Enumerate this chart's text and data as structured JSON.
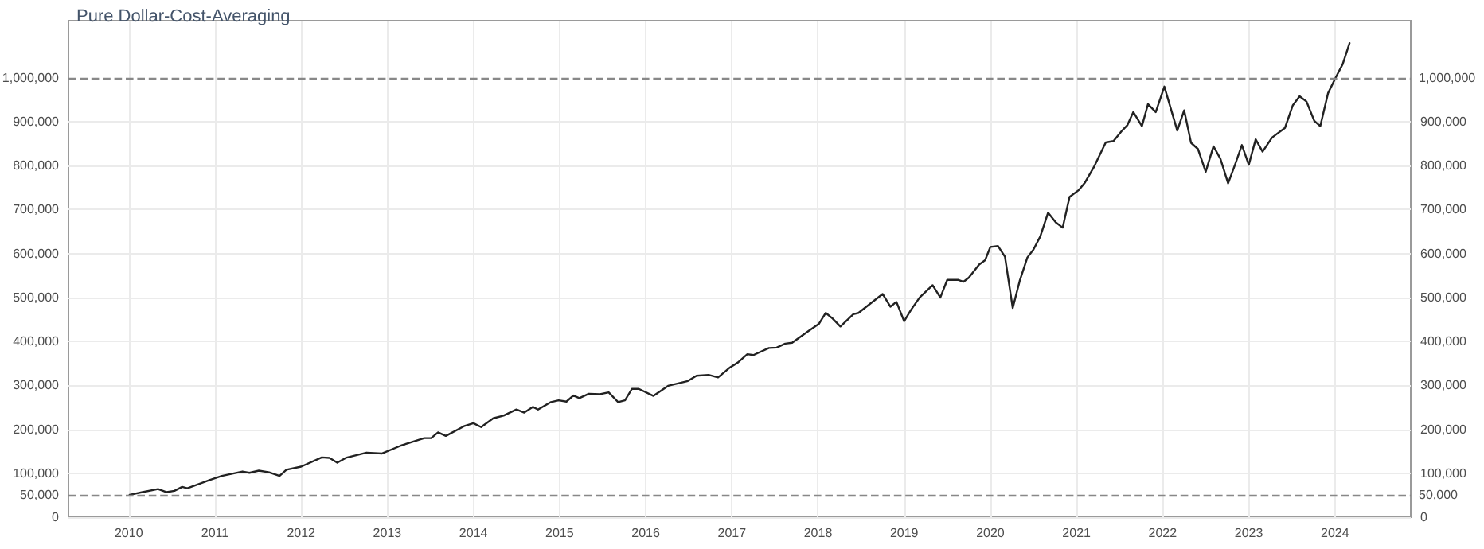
{
  "chart_data": {
    "type": "line",
    "title": "Pure Dollar-Cost-Averaging",
    "x": [
      2010.01,
      2010.16,
      2010.34,
      2010.44,
      2010.53,
      2010.62,
      2010.68,
      2010.93,
      2011.08,
      2011.32,
      2011.4,
      2011.51,
      2011.63,
      2011.75,
      2011.83,
      2012.0,
      2012.24,
      2012.33,
      2012.42,
      2012.52,
      2012.76,
      2012.94,
      2013.16,
      2013.43,
      2013.51,
      2013.59,
      2013.68,
      2013.89,
      2014.0,
      2014.09,
      2014.23,
      2014.35,
      2014.5,
      2014.59,
      2014.69,
      2014.75,
      2014.9,
      2014.99,
      2015.08,
      2015.16,
      2015.23,
      2015.34,
      2015.47,
      2015.57,
      2015.68,
      2015.76,
      2015.84,
      2015.92,
      2016.09,
      2016.26,
      2016.49,
      2016.59,
      2016.73,
      2016.84,
      2016.98,
      2017.07,
      2017.18,
      2017.25,
      2017.43,
      2017.52,
      2017.62,
      2017.7,
      2017.92,
      2018.01,
      2018.09,
      2018.17,
      2018.26,
      2018.41,
      2018.47,
      2018.62,
      2018.75,
      2018.84,
      2018.91,
      2019.0,
      2019.08,
      2019.18,
      2019.33,
      2019.42,
      2019.5,
      2019.63,
      2019.69,
      2019.75,
      2019.87,
      2019.94,
      2020.0,
      2020.09,
      2020.17,
      2020.26,
      2020.34,
      2020.43,
      2020.5,
      2020.58,
      2020.67,
      2020.76,
      2020.84,
      2020.92,
      2021.03,
      2021.1,
      2021.2,
      2021.34,
      2021.43,
      2021.53,
      2021.59,
      2021.66,
      2021.76,
      2021.83,
      2021.92,
      2022.02,
      2022.17,
      2022.25,
      2022.33,
      2022.41,
      2022.5,
      2022.59,
      2022.67,
      2022.76,
      2022.84,
      2022.92,
      2023.0,
      2023.08,
      2023.16,
      2023.27,
      2023.42,
      2023.51,
      2023.59,
      2023.67,
      2023.76,
      2023.83,
      2023.92,
      2024.01,
      2024.09,
      2024.17
    ],
    "series": [
      {
        "color": "#222222",
        "values": [
          51000,
          57000,
          64000,
          57000,
          60000,
          69000,
          66000,
          84000,
          94000,
          104000,
          101000,
          106000,
          102000,
          94000,
          108000,
          115000,
          136000,
          135000,
          124000,
          135000,
          147000,
          145000,
          163000,
          180000,
          180000,
          193000,
          185000,
          207000,
          214000,
          205000,
          225000,
          231000,
          245000,
          238000,
          251000,
          245000,
          262000,
          266000,
          263000,
          277000,
          271000,
          281000,
          280000,
          284000,
          262000,
          266000,
          292000,
          292000,
          276000,
          299000,
          310000,
          322000,
          324000,
          318000,
          341000,
          352000,
          371000,
          369000,
          385000,
          386000,
          395000,
          397000,
          428000,
          440000,
          465000,
          452000,
          434000,
          462000,
          465000,
          488000,
          508000,
          479000,
          490000,
          446000,
          472000,
          500000,
          528000,
          500000,
          540000,
          540000,
          536000,
          545000,
          575000,
          585000,
          615000,
          617000,
          593000,
          476000,
          537000,
          591000,
          609000,
          639000,
          693000,
          671000,
          659000,
          729000,
          745000,
          762000,
          796000,
          853000,
          856000,
          880000,
          892000,
          922000,
          890000,
          940000,
          922000,
          980000,
          880000,
          926000,
          852000,
          838000,
          786000,
          844000,
          816000,
          760000,
          802000,
          847000,
          802000,
          860000,
          832000,
          864000,
          886000,
          937000,
          958000,
          946000,
          902000,
          890000,
          965000,
          1001000,
          1031000,
          1079000
        ]
      }
    ],
    "xlim": [
      2009.3,
      2024.88
    ],
    "xticks": [
      2010,
      2011,
      2012,
      2013,
      2014,
      2015,
      2016,
      2017,
      2018,
      2019,
      2020,
      2021,
      2022,
      2023,
      2024
    ],
    "ylim": [
      0,
      1130000
    ],
    "yticks": [
      0,
      {
        "value": 100000,
        "label": "100,000"
      },
      {
        "value": 200000,
        "label": "200,000"
      },
      {
        "value": 300000,
        "label": "300,000"
      },
      {
        "value": 400000,
        "label": "400,000"
      },
      {
        "value": 500000,
        "label": "500,000"
      },
      {
        "value": 600000,
        "label": "600,000"
      },
      {
        "value": 700000,
        "label": "700,000"
      },
      {
        "value": 800000,
        "label": "800,000"
      },
      {
        "value": 900000,
        "label": "900,000"
      }
    ],
    "y2lim": [
      0,
      1130000
    ],
    "y2ticks": [
      0,
      {
        "value": 100000,
        "label": "100,000"
      },
      {
        "value": 200000,
        "label": "200,000"
      },
      {
        "value": 300000,
        "label": "300,000"
      },
      {
        "value": 400000,
        "label": "400,000"
      },
      {
        "value": 500000,
        "label": "500,000"
      },
      {
        "value": 600000,
        "label": "600,000"
      },
      {
        "value": 700000,
        "label": "700,000"
      },
      {
        "value": 800000,
        "label": "800,000"
      },
      {
        "value": 900000,
        "label": "900,000"
      }
    ],
    "ref_lines": [
      {
        "axis": "y",
        "value": 50000,
        "label": "50,000",
        "color": "#888888",
        "line_style": "dashed"
      },
      {
        "axis": "y",
        "value": 1000000,
        "label": "1,000,000",
        "color": "#888888",
        "line_style": "dashed"
      }
    ],
    "grid": true,
    "marker": "none",
    "line_style": "solid"
  }
}
